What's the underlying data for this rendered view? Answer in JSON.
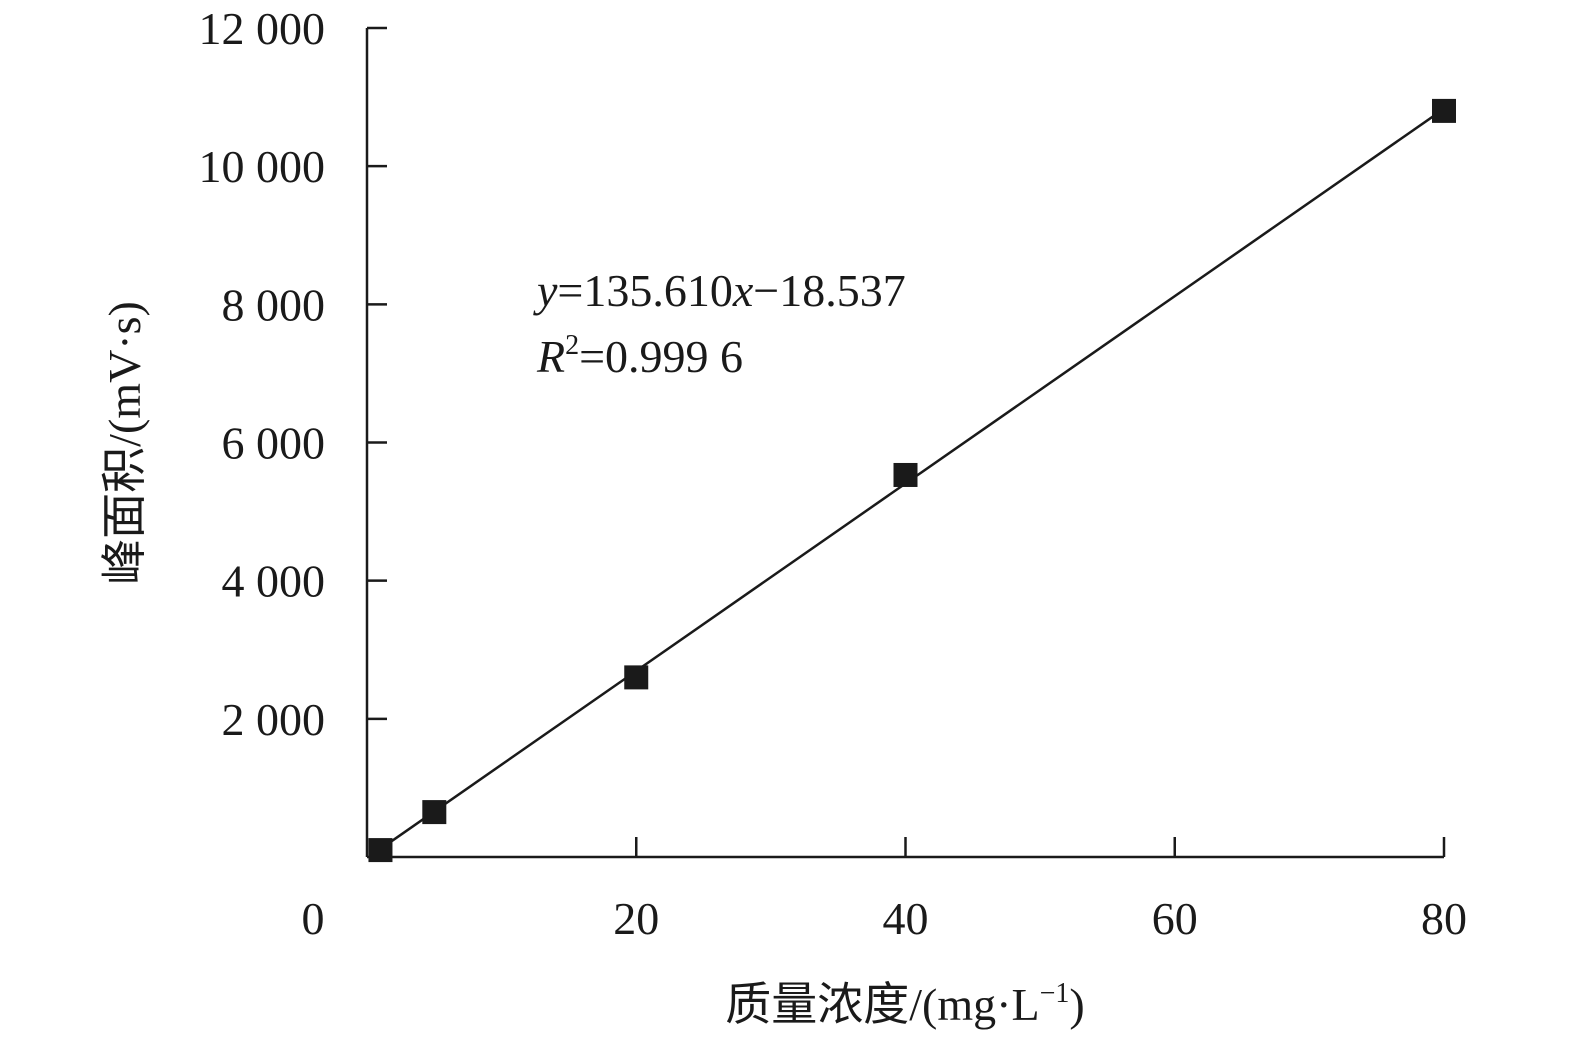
{
  "chart_data": {
    "type": "scatter",
    "title": "",
    "xlabel": "质量浓度/(mg·L",
    "xlabel_sup": "−1",
    "xlabel_tail": ")",
    "ylabel": "峰面积/(mV·s)",
    "xlim": [
      0,
      80
    ],
    "ylim": [
      0,
      12000
    ],
    "x_ticks": [
      0,
      20,
      40,
      60,
      80
    ],
    "x_tick_labels": [
      "0",
      "20",
      "40",
      "60",
      "80"
    ],
    "y_ticks": [
      2000,
      4000,
      6000,
      8000,
      10000,
      12000
    ],
    "y_tick_labels": [
      "2 000",
      "4 000",
      "6 000",
      "8 000",
      "10 000",
      "12 000"
    ],
    "grid": false,
    "series": [
      {
        "marker": "square",
        "color": "#1a1a1a",
        "x": [
          1,
          5,
          20,
          40,
          80
        ],
        "y": [
          100,
          650,
          2600,
          5530,
          10800
        ]
      }
    ],
    "fit_line": {
      "slope": 135.61,
      "intercept": -18.537,
      "x_range": [
        1,
        80
      ]
    },
    "annotation": {
      "eq_y": "y",
      "eq_rest": "=135.610",
      "eq_x": "x",
      "eq_tail": "−18.537",
      "r_label": "R",
      "r_sup": "2",
      "r_value": "=0.999 6"
    }
  }
}
